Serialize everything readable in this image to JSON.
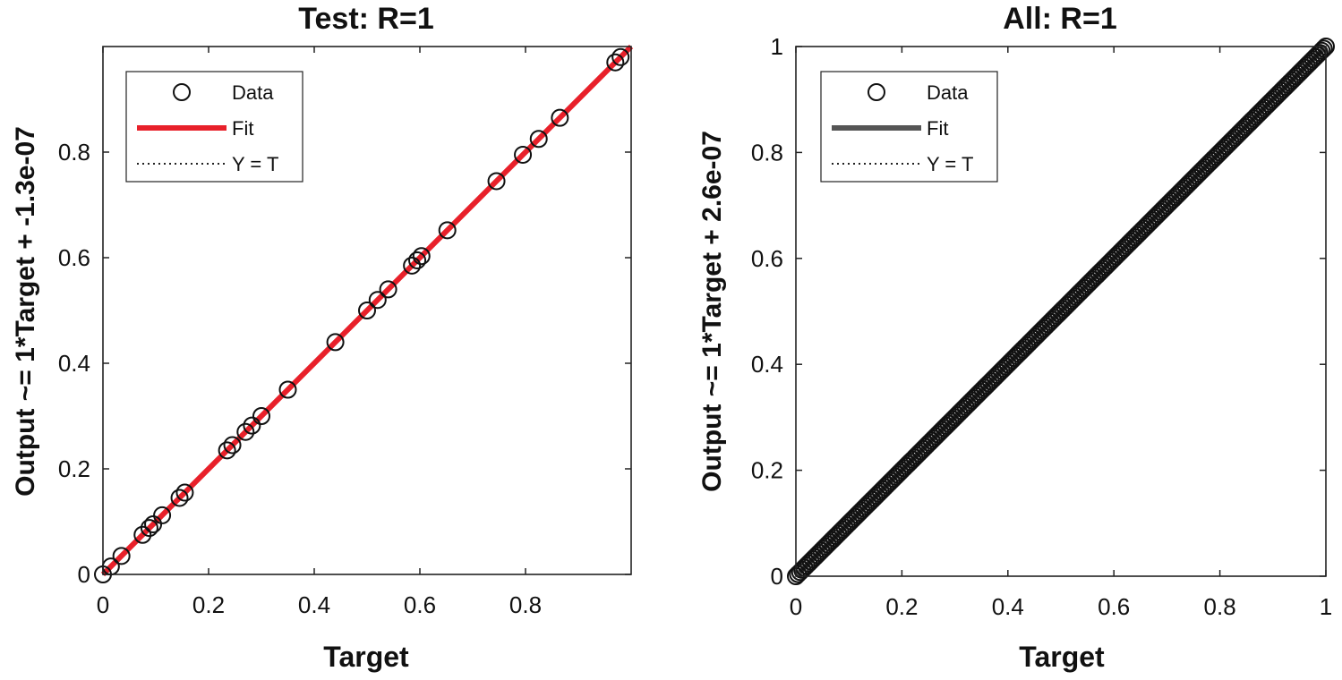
{
  "chart_data": [
    {
      "type": "scatter",
      "title": "Test: R=1",
      "xlabel": "Target",
      "ylabel": "Output ~= 1*Target + -1.3e-07",
      "xlim": [
        0,
        1
      ],
      "ylim": [
        0,
        1
      ],
      "xticks": [
        "0",
        "0.2",
        "0.4",
        "0.6",
        "0.8"
      ],
      "yticks": [
        "0",
        "0.2",
        "0.4",
        "0.6",
        "0.8"
      ],
      "grid": false,
      "legend_position": "top-left",
      "legend": {
        "data": "Data",
        "fit": "Fit",
        "identity": "Y = T"
      },
      "fit": {
        "slope": 1,
        "intercept": -1.3e-07,
        "color": "#e8202a"
      },
      "series": [
        {
          "name": "Data",
          "x": [
            0,
            0.015,
            0.035,
            0.075,
            0.088,
            0.095,
            0.112,
            0.145,
            0.155,
            0.235,
            0.245,
            0.27,
            0.282,
            0.3,
            0.35,
            0.44,
            0.5,
            0.52,
            0.54,
            0.585,
            0.595,
            0.603,
            0.652,
            0.745,
            0.795,
            0.825,
            0.865,
            0.97,
            0.98
          ],
          "y": [
            0,
            0.015,
            0.035,
            0.075,
            0.088,
            0.095,
            0.112,
            0.145,
            0.155,
            0.235,
            0.245,
            0.27,
            0.282,
            0.3,
            0.35,
            0.44,
            0.5,
            0.52,
            0.54,
            0.585,
            0.595,
            0.603,
            0.652,
            0.745,
            0.795,
            0.825,
            0.865,
            0.97,
            0.98
          ]
        }
      ]
    },
    {
      "type": "scatter",
      "title": "All: R=1",
      "xlabel": "Target",
      "ylabel": "Output ~= 1*Target + 2.6e-07",
      "xlim": [
        0,
        1
      ],
      "ylim": [
        0,
        1
      ],
      "xticks": [
        "0",
        "0.2",
        "0.4",
        "0.6",
        "0.8",
        "1"
      ],
      "yticks": [
        "0",
        "0.2",
        "0.4",
        "0.6",
        "0.8",
        "1"
      ],
      "grid": false,
      "legend_position": "top-left",
      "legend": {
        "data": "Data",
        "fit": "Fit",
        "identity": "Y = T"
      },
      "fit": {
        "slope": 1,
        "intercept": 2.6e-07,
        "color": "#555555"
      },
      "series": [
        {
          "name": "Data",
          "x_range": [
            0,
            1
          ],
          "step": 0.004,
          "relation": "y = x"
        }
      ]
    }
  ]
}
